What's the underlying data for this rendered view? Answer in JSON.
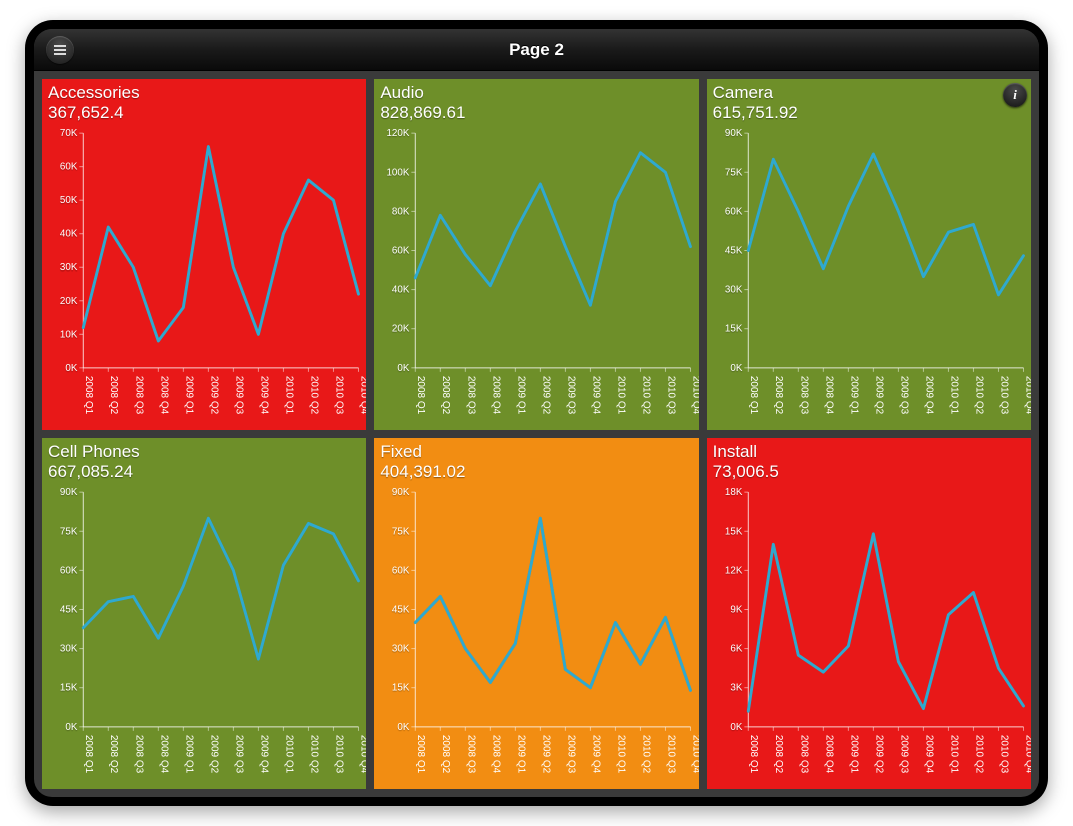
{
  "header": {
    "title": "Page 2",
    "menu_icon": "menu-icon",
    "info_icon": "info-icon"
  },
  "layout": {
    "cols": 3,
    "rows": 2,
    "device_bg": "#000000",
    "screen_bg": "#3a3a3a"
  },
  "shared_x": {
    "labels": [
      "2008 Q1",
      "2008 Q2",
      "2008 Q3",
      "2008 Q4",
      "2009 Q1",
      "2009 Q2",
      "2009 Q3",
      "2009 Q4",
      "2010 Q1",
      "2010 Q2",
      "2010 Q3",
      "2010 Q4"
    ]
  },
  "line_style": {
    "color": "#2fa9cf",
    "width": 3,
    "glow": "rgba(0,0,0,0.25)"
  },
  "palette": {
    "red": "#e81818",
    "green": "#6e8f29",
    "orange": "#f28d12"
  },
  "axis_style": {
    "tick_color": "#ffffff",
    "grid_color": "rgba(255,255,255,0.5)",
    "font_size": 10
  },
  "panels": [
    {
      "title": "Accessories",
      "value": "367,652.4",
      "bg": "#e81818",
      "type": "line",
      "ylim": [
        0,
        70000
      ],
      "ytick_step": 10000,
      "ytick_format": "K",
      "values": [
        12000,
        42000,
        30000,
        8000,
        18000,
        66000,
        30000,
        10000,
        40000,
        56000,
        50000,
        22000
      ]
    },
    {
      "title": "Audio",
      "value": "828,869.61",
      "bg": "#6e8f29",
      "type": "line",
      "ylim": [
        0,
        120000
      ],
      "ytick_step": 20000,
      "ytick_format": "K",
      "values": [
        46000,
        78000,
        58000,
        42000,
        70000,
        94000,
        62000,
        32000,
        85000,
        110000,
        100000,
        62000
      ]
    },
    {
      "title": "Camera",
      "value": "615,751.92",
      "bg": "#6e8f29",
      "type": "line",
      "ylim": [
        0,
        90000
      ],
      "ytick_step": 15000,
      "ytick_format": "K",
      "values": [
        45000,
        80000,
        60000,
        38000,
        62000,
        82000,
        60000,
        35000,
        52000,
        55000,
        28000,
        43000
      ]
    },
    {
      "title": "Cell Phones",
      "value": "667,085.24",
      "bg": "#6e8f29",
      "type": "line",
      "ylim": [
        0,
        90000
      ],
      "ytick_step": 15000,
      "ytick_format": "K",
      "values": [
        38000,
        48000,
        50000,
        34000,
        54000,
        80000,
        60000,
        26000,
        62000,
        78000,
        74000,
        56000
      ]
    },
    {
      "title": "Fixed",
      "value": "404,391.02",
      "bg": "#f28d12",
      "type": "line",
      "ylim": [
        0,
        90000
      ],
      "ytick_step": 15000,
      "ytick_format": "K",
      "values": [
        40000,
        50000,
        30000,
        17000,
        32000,
        80000,
        22000,
        15000,
        40000,
        24000,
        42000,
        14000
      ]
    },
    {
      "title": "Install",
      "value": "73,006.5",
      "bg": "#e81818",
      "type": "line",
      "ylim": [
        0,
        18000
      ],
      "ytick_step": 3000,
      "ytick_format": "K",
      "values": [
        1200,
        14000,
        5500,
        4200,
        6200,
        14800,
        5000,
        1400,
        8600,
        10300,
        4500,
        1600
      ]
    }
  ]
}
